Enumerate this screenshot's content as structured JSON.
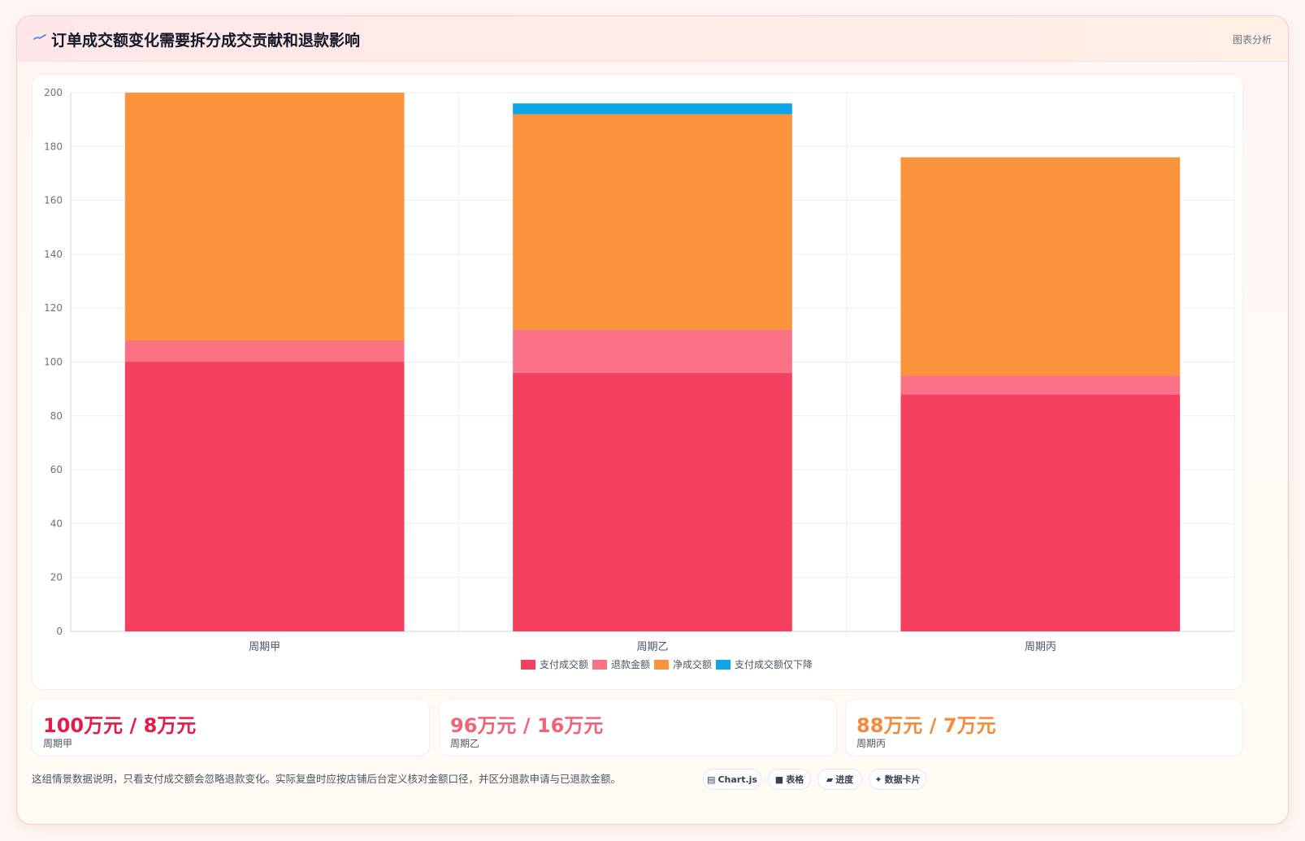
{
  "header": {
    "title": "订单成交额变化需要拆分成交贡献和退款影响",
    "tag": "图表分析",
    "logo_icon": "wave-icon"
  },
  "chart_data": {
    "type": "bar",
    "stacked": true,
    "categories": [
      "周期甲",
      "周期乙",
      "周期丙"
    ],
    "series": [
      {
        "name": "支付成交额",
        "color": "#f43f5e",
        "values": [
          100,
          96,
          88
        ]
      },
      {
        "name": "退款金额",
        "color": "#fb7185",
        "values": [
          8,
          16,
          7
        ]
      },
      {
        "name": "净成交额",
        "color": "#fb923c",
        "values": [
          92,
          80,
          81
        ]
      },
      {
        "name": "支付成交额仅下降",
        "color": "#0ea5e9",
        "values": [
          0,
          4,
          0
        ]
      }
    ],
    "ylim": [
      0,
      200
    ],
    "yticks": [
      0,
      20,
      40,
      60,
      80,
      100,
      120,
      140,
      160,
      180,
      200
    ],
    "grid": true,
    "legend": "bottom"
  },
  "stats": [
    {
      "value": "100万元 / 8万元",
      "label": "周期甲",
      "color": "#e11d48"
    },
    {
      "value": "96万元 / 16万元",
      "label": "周期乙",
      "color": "#f0647a"
    },
    {
      "value": "88万元 / 7万元",
      "label": "周期丙",
      "color": "#f58a3c"
    }
  ],
  "note": "这组情景数据说明，只看支付成交额会忽略退款变化。实际复盘时应按店铺后台定义核对金额口径，并区分退款申请与已退款金额。",
  "chips": [
    {
      "label": "Chart.js",
      "icon": "chart-icon"
    },
    {
      "label": "表格",
      "icon": "table-icon"
    },
    {
      "label": "进度",
      "icon": "progress-icon"
    },
    {
      "label": "数据卡片",
      "icon": "sparkle-icon"
    }
  ]
}
